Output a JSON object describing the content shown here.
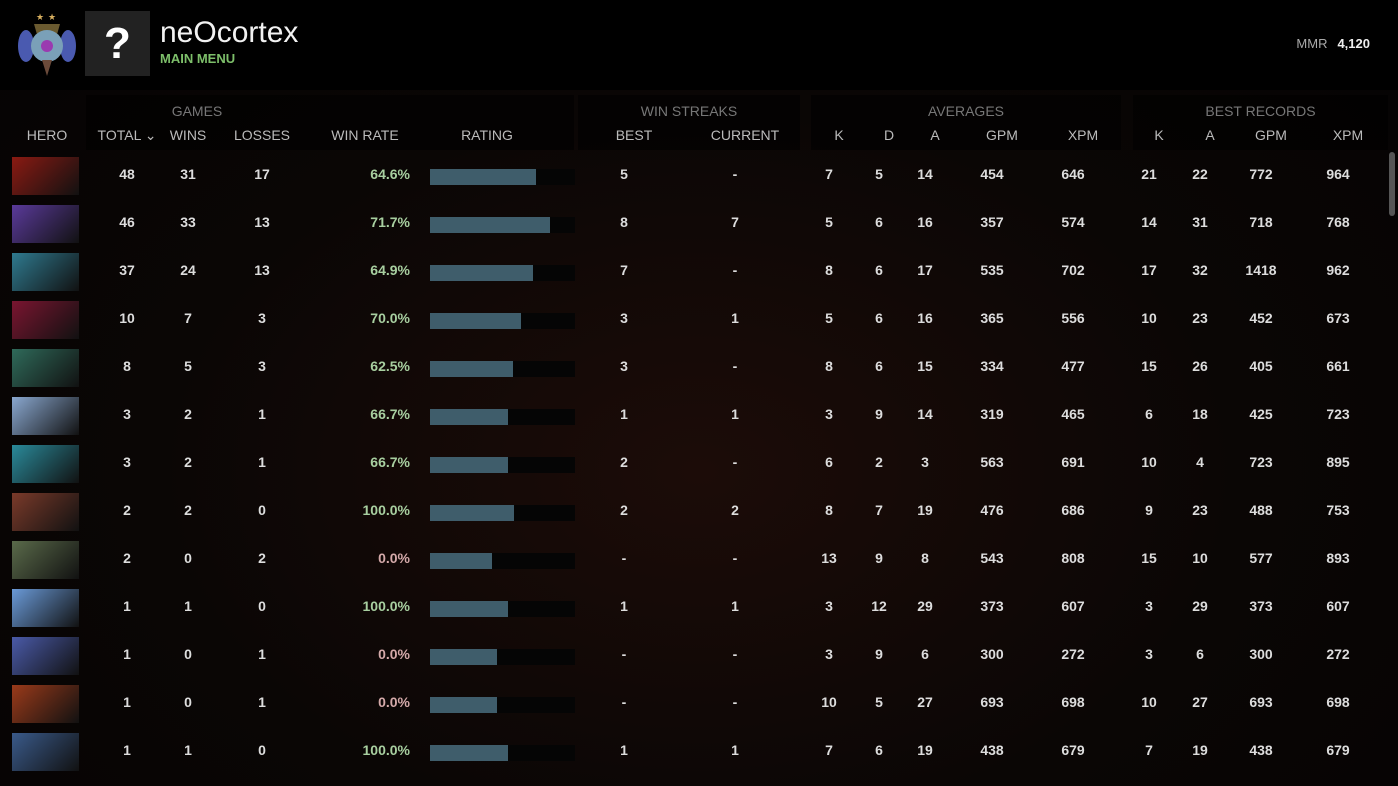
{
  "header": {
    "name": "neOcortex",
    "status": "MAIN MENU",
    "mmr_label": "MMR",
    "mmr_value": "4,120",
    "avatar_glyph": "?",
    "medal_icon": "rank-medal-icon"
  },
  "groups": {
    "games": "GAMES",
    "win_streaks": "WIN STREAKS",
    "averages": "AVERAGES",
    "best_records": "BEST RECORDS"
  },
  "columns": {
    "hero": "HERO",
    "total": "TOTAL",
    "sort": "⌄",
    "wins": "WINS",
    "losses": "LOSSES",
    "win_rate": "WIN RATE",
    "rating": "RATING",
    "best": "BEST",
    "current": "CURRENT",
    "k": "K",
    "d": "D",
    "a": "A",
    "gpm": "GPM",
    "xpm": "XPM",
    "bk": "K",
    "ba": "A",
    "bgpm": "GPM",
    "bxpm": "XPM"
  },
  "colors": {
    "win_rate_positive": "#a8cfa0",
    "win_rate_zero": "#d4a9a9",
    "rating_bar": "#3f5d6b",
    "status": "#7dbf6a"
  },
  "rows": [
    {
      "hero_color": "#8a1a12",
      "total": "48",
      "wins": "31",
      "losses": "17",
      "win_rate": "64.6%",
      "rating": 0.73,
      "best": "5",
      "current": "-",
      "k": "7",
      "d": "5",
      "a": "14",
      "gpm": "454",
      "xpm": "646",
      "bk": "21",
      "ba": "22",
      "bgpm": "772",
      "bxpm": "964"
    },
    {
      "hero_color": "#5a3a9a",
      "total": "46",
      "wins": "33",
      "losses": "13",
      "win_rate": "71.7%",
      "rating": 0.83,
      "best": "8",
      "current": "7",
      "k": "5",
      "d": "6",
      "a": "16",
      "gpm": "357",
      "xpm": "574",
      "bk": "14",
      "ba": "31",
      "bgpm": "718",
      "bxpm": "768"
    },
    {
      "hero_color": "#2f7a8f",
      "total": "37",
      "wins": "24",
      "losses": "13",
      "win_rate": "64.9%",
      "rating": 0.71,
      "best": "7",
      "current": "-",
      "k": "8",
      "d": "6",
      "a": "17",
      "gpm": "535",
      "xpm": "702",
      "bk": "17",
      "ba": "32",
      "bgpm": "1418",
      "bxpm": "962"
    },
    {
      "hero_color": "#7a1530",
      "total": "10",
      "wins": "7",
      "losses": "3",
      "win_rate": "70.0%",
      "rating": 0.63,
      "best": "3",
      "current": "1",
      "k": "5",
      "d": "6",
      "a": "16",
      "gpm": "365",
      "xpm": "556",
      "bk": "10",
      "ba": "23",
      "bgpm": "452",
      "bxpm": "673"
    },
    {
      "hero_color": "#2f6a5a",
      "total": "8",
      "wins": "5",
      "losses": "3",
      "win_rate": "62.5%",
      "rating": 0.57,
      "best": "3",
      "current": "-",
      "k": "8",
      "d": "6",
      "a": "15",
      "gpm": "334",
      "xpm": "477",
      "bk": "15",
      "ba": "26",
      "bgpm": "405",
      "bxpm": "661"
    },
    {
      "hero_color": "#8aa8d0",
      "total": "3",
      "wins": "2",
      "losses": "1",
      "win_rate": "66.7%",
      "rating": 0.54,
      "best": "1",
      "current": "1",
      "k": "3",
      "d": "9",
      "a": "14",
      "gpm": "319",
      "xpm": "465",
      "bk": "6",
      "ba": "18",
      "bgpm": "425",
      "bxpm": "723"
    },
    {
      "hero_color": "#2a8a9a",
      "total": "3",
      "wins": "2",
      "losses": "1",
      "win_rate": "66.7%",
      "rating": 0.54,
      "best": "2",
      "current": "-",
      "k": "6",
      "d": "2",
      "a": "3",
      "gpm": "563",
      "xpm": "691",
      "bk": "10",
      "ba": "4",
      "bgpm": "723",
      "bxpm": "895"
    },
    {
      "hero_color": "#7a3a2a",
      "total": "2",
      "wins": "2",
      "losses": "0",
      "win_rate": "100.0%",
      "rating": 0.58,
      "best": "2",
      "current": "2",
      "k": "8",
      "d": "7",
      "a": "19",
      "gpm": "476",
      "xpm": "686",
      "bk": "9",
      "ba": "23",
      "bgpm": "488",
      "bxpm": "753"
    },
    {
      "hero_color": "#5a6a4a",
      "total": "2",
      "wins": "0",
      "losses": "2",
      "win_rate": "0.0%",
      "rating": 0.43,
      "best": "-",
      "current": "-",
      "k": "13",
      "d": "9",
      "a": "8",
      "gpm": "543",
      "xpm": "808",
      "bk": "15",
      "ba": "10",
      "bgpm": "577",
      "bxpm": "893"
    },
    {
      "hero_color": "#6a9ad8",
      "total": "1",
      "wins": "1",
      "losses": "0",
      "win_rate": "100.0%",
      "rating": 0.54,
      "best": "1",
      "current": "1",
      "k": "3",
      "d": "12",
      "a": "29",
      "gpm": "373",
      "xpm": "607",
      "bk": "3",
      "ba": "29",
      "bgpm": "373",
      "bxpm": "607"
    },
    {
      "hero_color": "#4a5aa8",
      "total": "1",
      "wins": "0",
      "losses": "1",
      "win_rate": "0.0%",
      "rating": 0.46,
      "best": "-",
      "current": "-",
      "k": "3",
      "d": "9",
      "a": "6",
      "gpm": "300",
      "xpm": "272",
      "bk": "3",
      "ba": "6",
      "bgpm": "300",
      "bxpm": "272"
    },
    {
      "hero_color": "#9a3a1a",
      "total": "1",
      "wins": "0",
      "losses": "1",
      "win_rate": "0.0%",
      "rating": 0.46,
      "best": "-",
      "current": "-",
      "k": "10",
      "d": "5",
      "a": "27",
      "gpm": "693",
      "xpm": "698",
      "bk": "10",
      "ba": "27",
      "bgpm": "693",
      "bxpm": "698"
    },
    {
      "hero_color": "#3a5a8a",
      "total": "1",
      "wins": "1",
      "losses": "0",
      "win_rate": "100.0%",
      "rating": 0.54,
      "best": "1",
      "current": "1",
      "k": "7",
      "d": "6",
      "a": "19",
      "gpm": "438",
      "xpm": "679",
      "bk": "7",
      "ba": "19",
      "bgpm": "438",
      "bxpm": "679"
    }
  ]
}
